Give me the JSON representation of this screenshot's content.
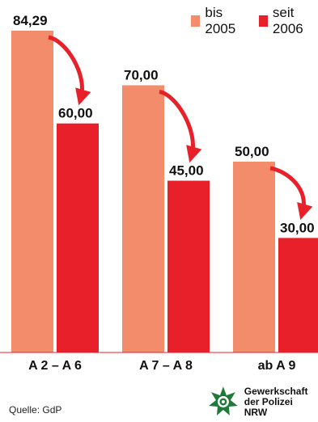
{
  "legend": {
    "items": [
      {
        "label": "bis 2005",
        "color": "#f28c6b"
      },
      {
        "label": "seit 2006",
        "color": "#e8202a"
      }
    ]
  },
  "source": "Quelle: GdP",
  "logo": {
    "icon": "police-star-icon",
    "line1": "Gewerkschaft",
    "line2": "der Polizei NRW"
  },
  "chart_data": {
    "type": "bar",
    "categories": [
      "A 2 – A 6",
      "A 7 – A 8",
      "ab A 9"
    ],
    "series": [
      {
        "name": "bis 2005",
        "color": "#f28c6b",
        "values": [
          84.29,
          70.0,
          50.0
        ],
        "labels": [
          "84,29",
          "70,00",
          "50,00"
        ]
      },
      {
        "name": "seit 2006",
        "color": "#e8202a",
        "values": [
          60.0,
          45.0,
          30.0
        ],
        "labels": [
          "60,00",
          "45,00",
          "30,00"
        ]
      }
    ],
    "ylim": [
      0,
      84.29
    ],
    "annotations": "curved red arrows from each bis-2005 bar to the matching seit-2006 bar",
    "grid": false,
    "legend_position": "top-right"
  }
}
